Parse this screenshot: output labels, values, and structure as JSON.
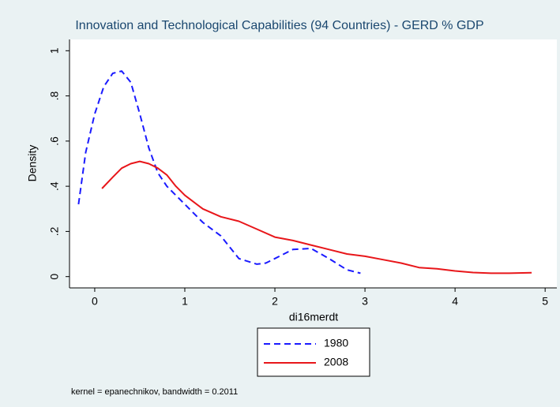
{
  "chart_data": {
    "type": "line",
    "title": "Innovation and Technological Capabilities (94 Countries) - GERD % GDP",
    "xlabel": "di16merdt",
    "ylabel": "Density",
    "note": "kernel = epanechnikov, bandwidth = 0.2011",
    "xlim": [
      -0.28,
      5.13
    ],
    "ylim": [
      -0.05,
      1.05
    ],
    "xticks": [
      0,
      1,
      2,
      3,
      4,
      5
    ],
    "yticks": [
      0,
      {
        "value": 0.2,
        "label": ".2"
      },
      {
        "value": 0.4,
        "label": ".4"
      },
      {
        "value": 0.6,
        "label": ".6"
      },
      {
        "value": 0.8,
        "label": ".8"
      },
      1
    ],
    "series": [
      {
        "name": "1980",
        "color": "#1a1aff",
        "style": "dashed",
        "x": [
          -0.18,
          -0.1,
          0,
          0.1,
          0.2,
          0.3,
          0.4,
          0.5,
          0.6,
          0.7,
          0.8,
          1.0,
          1.2,
          1.4,
          1.6,
          1.8,
          1.9,
          2.0,
          2.2,
          2.4,
          2.6,
          2.8,
          2.95
        ],
        "values": [
          0.32,
          0.55,
          0.72,
          0.84,
          0.9,
          0.91,
          0.86,
          0.72,
          0.57,
          0.46,
          0.4,
          0.32,
          0.24,
          0.18,
          0.08,
          0.055,
          0.06,
          0.08,
          0.12,
          0.125,
          0.08,
          0.03,
          0.015
        ]
      },
      {
        "name": "2008",
        "color": "#e8161a",
        "style": "solid",
        "x": [
          0.08,
          0.2,
          0.3,
          0.4,
          0.5,
          0.6,
          0.7,
          0.8,
          0.9,
          1.0,
          1.2,
          1.4,
          1.6,
          1.8,
          2.0,
          2.2,
          2.4,
          2.6,
          2.8,
          3.0,
          3.2,
          3.4,
          3.6,
          3.8,
          4.0,
          4.2,
          4.4,
          4.6,
          4.85
        ],
        "values": [
          0.39,
          0.44,
          0.48,
          0.5,
          0.51,
          0.5,
          0.48,
          0.45,
          0.4,
          0.36,
          0.3,
          0.265,
          0.245,
          0.21,
          0.175,
          0.16,
          0.14,
          0.12,
          0.1,
          0.09,
          0.075,
          0.06,
          0.04,
          0.035,
          0.025,
          0.018,
          0.015,
          0.015,
          0.017
        ]
      }
    ]
  }
}
